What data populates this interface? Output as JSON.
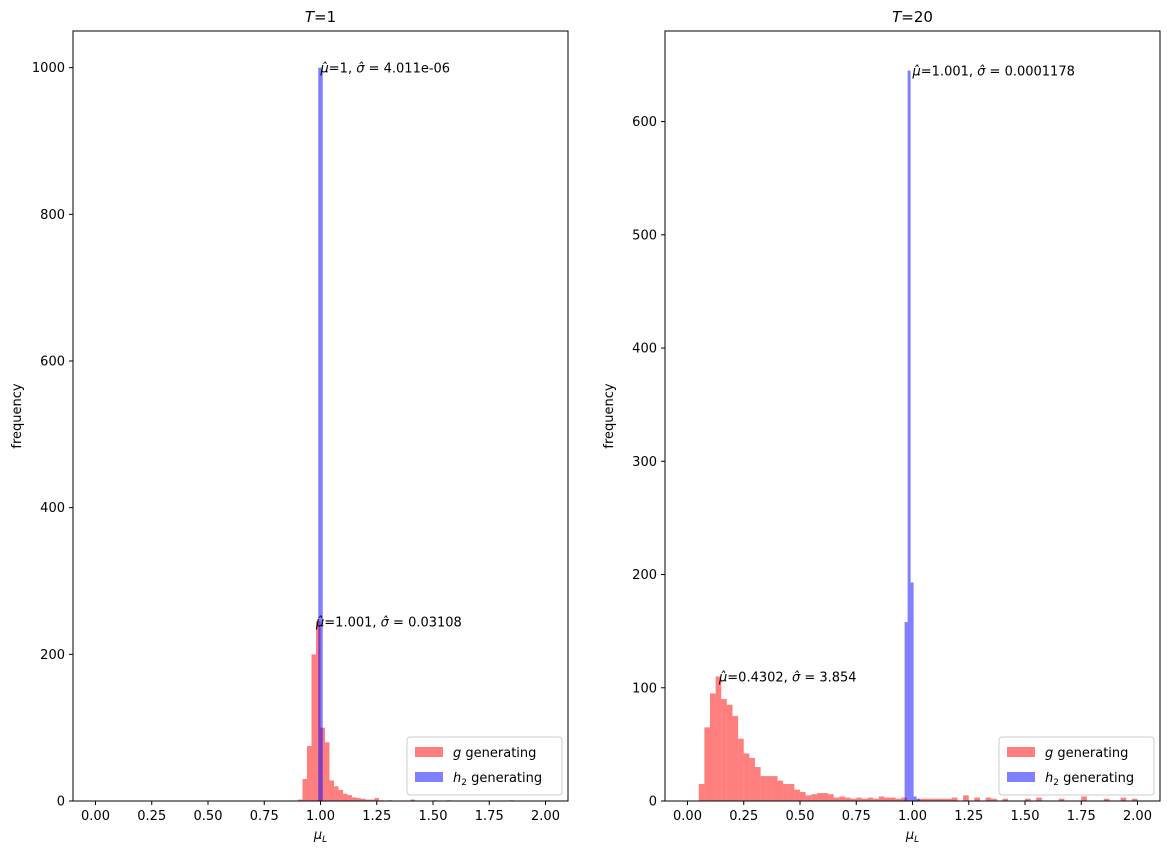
{
  "chart_data": [
    {
      "type": "bar",
      "title": "T=1",
      "title_var": "T",
      "title_rest": "=1",
      "xlabel_base": "μ",
      "xlabel_sub": "L",
      "ylabel": "frequency",
      "xlim": [
        -0.1,
        2.1
      ],
      "ylim": [
        0,
        1050
      ],
      "xticks": [
        "0.00",
        "0.25",
        "0.50",
        "0.75",
        "1.00",
        "1.25",
        "1.50",
        "1.75",
        "2.00"
      ],
      "yticks": [
        "0",
        "200",
        "400",
        "600",
        "800",
        "1000"
      ],
      "grid": false,
      "legend_position": "lower right",
      "series": [
        {
          "name": "g generating",
          "name_var": "g",
          "name_rest": " generating",
          "color": "#ff0000",
          "opacity": 0.5,
          "bin_width": 0.02,
          "bins": [
            [
              0.9,
              2
            ],
            [
              0.92,
              30
            ],
            [
              0.94,
              75
            ],
            [
              0.96,
              200
            ],
            [
              0.98,
              245
            ],
            [
              1.0,
              100
            ],
            [
              1.02,
              80
            ],
            [
              1.04,
              28
            ],
            [
              1.06,
              20
            ],
            [
              1.08,
              15
            ],
            [
              1.1,
              10
            ],
            [
              1.12,
              8
            ],
            [
              1.14,
              5
            ],
            [
              1.16,
              4
            ],
            [
              1.18,
              3
            ],
            [
              1.2,
              2
            ],
            [
              1.22,
              2
            ],
            [
              1.24,
              4
            ],
            [
              1.26,
              1
            ],
            [
              1.3,
              1
            ],
            [
              1.4,
              2
            ],
            [
              1.5,
              1
            ],
            [
              1.56,
              1
            ],
            [
              1.84,
              1
            ],
            [
              2.0,
              1
            ]
          ]
        },
        {
          "name": "h2 generating",
          "name_var": "h",
          "name_sub": "2",
          "name_rest": " generating",
          "color": "#0000ff",
          "opacity": 0.5,
          "bin_width": 0.02,
          "bins": [
            [
              0.99,
              1000
            ]
          ]
        }
      ],
      "annotations": [
        {
          "x": 1.0,
          "y": 1000,
          "mu": "1",
          "sigma": "4.011e-06"
        },
        {
          "x": 0.98,
          "y": 245,
          "mu": "1.001",
          "sigma": "0.03108"
        }
      ]
    },
    {
      "type": "bar",
      "title": "T=20",
      "title_var": "T",
      "title_rest": "=20",
      "xlabel_base": "μ",
      "xlabel_sub": "L",
      "ylabel": "frequency",
      "xlim": [
        -0.1,
        2.1
      ],
      "ylim": [
        0,
        680
      ],
      "xticks": [
        "0.00",
        "0.25",
        "0.50",
        "0.75",
        "1.00",
        "1.25",
        "1.50",
        "1.75",
        "2.00"
      ],
      "yticks": [
        "0",
        "100",
        "200",
        "300",
        "400",
        "500",
        "600"
      ],
      "grid": false,
      "legend_position": "lower right",
      "series": [
        {
          "name": "g generating",
          "name_var": "g",
          "name_rest": " generating",
          "color": "#ff0000",
          "opacity": 0.5,
          "bin_width": 0.025,
          "bins": [
            [
              0.05,
              15
            ],
            [
              0.075,
              65
            ],
            [
              0.1,
              95
            ],
            [
              0.125,
              110
            ],
            [
              0.15,
              90
            ],
            [
              0.175,
              85
            ],
            [
              0.2,
              75
            ],
            [
              0.225,
              55
            ],
            [
              0.25,
              42
            ],
            [
              0.275,
              38
            ],
            [
              0.3,
              30
            ],
            [
              0.325,
              22
            ],
            [
              0.35,
              22
            ],
            [
              0.375,
              22
            ],
            [
              0.4,
              18
            ],
            [
              0.425,
              15
            ],
            [
              0.45,
              15
            ],
            [
              0.475,
              10
            ],
            [
              0.5,
              8
            ],
            [
              0.525,
              5
            ],
            [
              0.55,
              6
            ],
            [
              0.575,
              7
            ],
            [
              0.6,
              7
            ],
            [
              0.625,
              6
            ],
            [
              0.65,
              3
            ],
            [
              0.675,
              4
            ],
            [
              0.7,
              3
            ],
            [
              0.725,
              2
            ],
            [
              0.75,
              3
            ],
            [
              0.775,
              2
            ],
            [
              0.8,
              3
            ],
            [
              0.825,
              2
            ],
            [
              0.85,
              4
            ],
            [
              0.875,
              3
            ],
            [
              0.9,
              3
            ],
            [
              0.925,
              2
            ],
            [
              0.95,
              3
            ],
            [
              1.025,
              2
            ],
            [
              1.05,
              2
            ],
            [
              1.075,
              2
            ],
            [
              1.1,
              2
            ],
            [
              1.125,
              2
            ],
            [
              1.15,
              2
            ],
            [
              1.175,
              3
            ],
            [
              1.225,
              5
            ],
            [
              1.275,
              3
            ],
            [
              1.325,
              3
            ],
            [
              1.35,
              2
            ],
            [
              1.4,
              2
            ],
            [
              1.5,
              2
            ],
            [
              1.55,
              3
            ],
            [
              1.65,
              2
            ],
            [
              1.75,
              4
            ],
            [
              1.85,
              2
            ],
            [
              1.925,
              3
            ],
            [
              1.975,
              2
            ]
          ]
        },
        {
          "name": "h2 generating",
          "name_var": "h",
          "name_sub": "2",
          "name_rest": " generating",
          "color": "#0000ff",
          "opacity": 0.5,
          "bin_width": 0.0133,
          "bins": [
            [
              0.965,
              158
            ],
            [
              0.9783,
              645
            ],
            [
              0.9916,
              193
            ],
            [
              1.0049,
              4
            ],
            [
              1.0182,
              2
            ]
          ]
        }
      ],
      "annotations": [
        {
          "x": 1.0,
          "y": 645,
          "mu": "1.001",
          "sigma": "0.0001178"
        },
        {
          "x": 0.14,
          "y": 110,
          "mu": "0.4302",
          "sigma": "3.854"
        }
      ]
    }
  ]
}
